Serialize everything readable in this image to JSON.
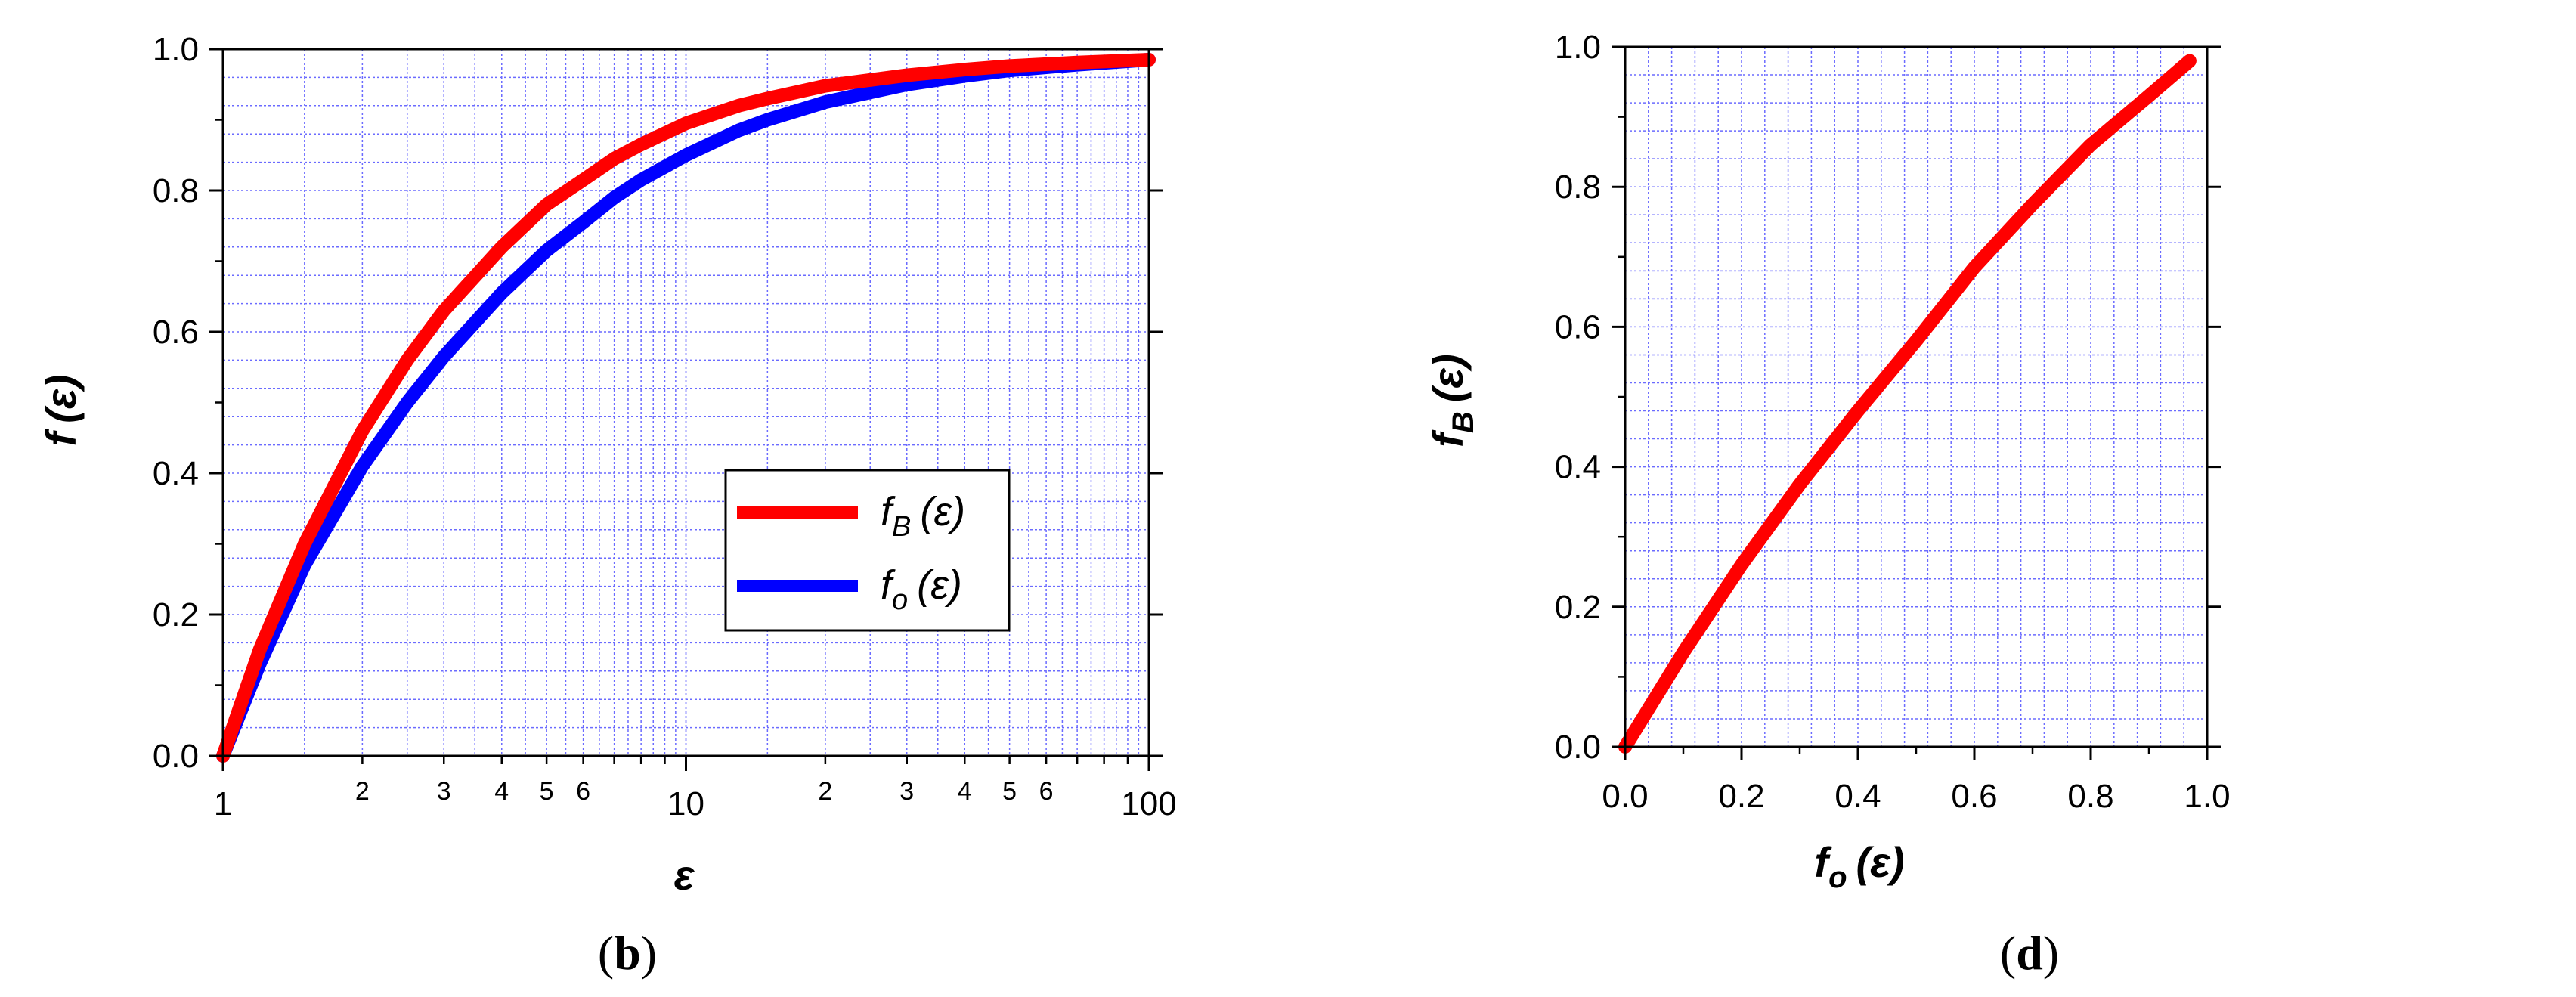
{
  "colors": {
    "fB": "#ff0000",
    "fo": "#0000ff",
    "grid": "#6b6bff",
    "axis": "#000000"
  },
  "panels": [
    {
      "label_parts": [
        "(",
        "b",
        ")"
      ],
      "x_axis": {
        "scale": "log",
        "range": [
          1,
          100
        ],
        "major_ticks": [
          {
            "v": 1,
            "label": "1"
          },
          {
            "v": 10,
            "label": "10"
          },
          {
            "v": 100,
            "label": "100"
          }
        ],
        "minor_labeled_ticks": [
          {
            "v": 2,
            "label": "2"
          },
          {
            "v": 3,
            "label": "3"
          },
          {
            "v": 4,
            "label": "4"
          },
          {
            "v": 5,
            "label": "5"
          },
          {
            "v": 6,
            "label": "6"
          },
          {
            "v": 20,
            "label": "2"
          },
          {
            "v": 30,
            "label": "3"
          },
          {
            "v": 40,
            "label": "4"
          },
          {
            "v": 50,
            "label": "5"
          },
          {
            "v": 60,
            "label": "6"
          }
        ],
        "title": "ε"
      },
      "y_axis": {
        "range": [
          0,
          1
        ],
        "ticks": [
          {
            "v": 0,
            "label": "0.0"
          },
          {
            "v": 0.2,
            "label": "0.2"
          },
          {
            "v": 0.4,
            "label": "0.4"
          },
          {
            "v": 0.6,
            "label": "0.6"
          },
          {
            "v": 0.8,
            "label": "0.8"
          },
          {
            "v": 1.0,
            "label": "1.0"
          }
        ],
        "title_parts": {
          "f": "f",
          "sub": "",
          "arg": "(ε)"
        }
      },
      "legend": {
        "placement": "center-right",
        "entries": [
          {
            "series": "fB",
            "f": "f",
            "sub": "B",
            "arg": "(ε)"
          },
          {
            "series": "fo",
            "f": "f",
            "sub": "o",
            "arg": "(ε)"
          }
        ]
      }
    },
    {
      "label_parts": [
        "(",
        "d",
        ")"
      ],
      "x_axis": {
        "scale": "linear",
        "range": [
          0,
          1
        ],
        "ticks": [
          {
            "v": 0,
            "label": "0.0"
          },
          {
            "v": 0.2,
            "label": "0.2"
          },
          {
            "v": 0.4,
            "label": "0.4"
          },
          {
            "v": 0.6,
            "label": "0.6"
          },
          {
            "v": 0.8,
            "label": "0.8"
          },
          {
            "v": 1.0,
            "label": "1.0"
          }
        ],
        "title_parts": {
          "f": "f",
          "sub": "o",
          "arg": "(ε)"
        }
      },
      "y_axis": {
        "range": [
          0,
          1
        ],
        "ticks": [
          {
            "v": 0,
            "label": "0.0"
          },
          {
            "v": 0.2,
            "label": "0.2"
          },
          {
            "v": 0.4,
            "label": "0.4"
          },
          {
            "v": 0.6,
            "label": "0.6"
          },
          {
            "v": 0.8,
            "label": "0.8"
          },
          {
            "v": 1.0,
            "label": "1.0"
          }
        ],
        "title_parts": {
          "f": "f",
          "sub": "B",
          "arg": "(ε)"
        }
      }
    }
  ],
  "chart_data": [
    {
      "type": "line",
      "grid": true,
      "xscale": "log",
      "xlim": [
        1,
        100
      ],
      "ylim": [
        0,
        1
      ],
      "series": [
        {
          "key": "fB",
          "name": "f_B (ε)",
          "points": [
            [
              1,
              0
            ],
            [
              1.2,
              0.15
            ],
            [
              1.5,
              0.3
            ],
            [
              2,
              0.46
            ],
            [
              2.5,
              0.56
            ],
            [
              3,
              0.63
            ],
            [
              4,
              0.72
            ],
            [
              5,
              0.78
            ],
            [
              6,
              0.815
            ],
            [
              7,
              0.845
            ],
            [
              8,
              0.865
            ],
            [
              10,
              0.895
            ],
            [
              13,
              0.92
            ],
            [
              15,
              0.93
            ],
            [
              20,
              0.948
            ],
            [
              30,
              0.963
            ],
            [
              40,
              0.971
            ],
            [
              50,
              0.976
            ],
            [
              70,
              0.981
            ],
            [
              100,
              0.985
            ]
          ]
        },
        {
          "key": "fo",
          "name": "f_o (ε)",
          "points": [
            [
              1,
              0
            ],
            [
              1.2,
              0.13
            ],
            [
              1.5,
              0.27
            ],
            [
              2,
              0.41
            ],
            [
              2.5,
              0.5
            ],
            [
              3,
              0.565
            ],
            [
              4,
              0.655
            ],
            [
              5,
              0.715
            ],
            [
              6,
              0.755
            ],
            [
              7,
              0.79
            ],
            [
              8,
              0.815
            ],
            [
              10,
              0.85
            ],
            [
              13,
              0.885
            ],
            [
              15,
              0.9
            ],
            [
              20,
              0.925
            ],
            [
              30,
              0.95
            ],
            [
              40,
              0.962
            ],
            [
              50,
              0.97
            ],
            [
              70,
              0.978
            ],
            [
              100,
              0.985
            ]
          ]
        }
      ]
    },
    {
      "type": "line",
      "grid": true,
      "xlim": [
        0,
        1
      ],
      "ylim": [
        0,
        1
      ],
      "series": [
        {
          "key": "fB",
          "points": [
            [
              0,
              0
            ],
            [
              0.1,
              0.135
            ],
            [
              0.2,
              0.26
            ],
            [
              0.3,
              0.375
            ],
            [
              0.4,
              0.48
            ],
            [
              0.5,
              0.58
            ],
            [
              0.6,
              0.685
            ],
            [
              0.7,
              0.775
            ],
            [
              0.8,
              0.86
            ],
            [
              0.9,
              0.93
            ],
            [
              0.97,
              0.98
            ]
          ]
        }
      ]
    }
  ]
}
